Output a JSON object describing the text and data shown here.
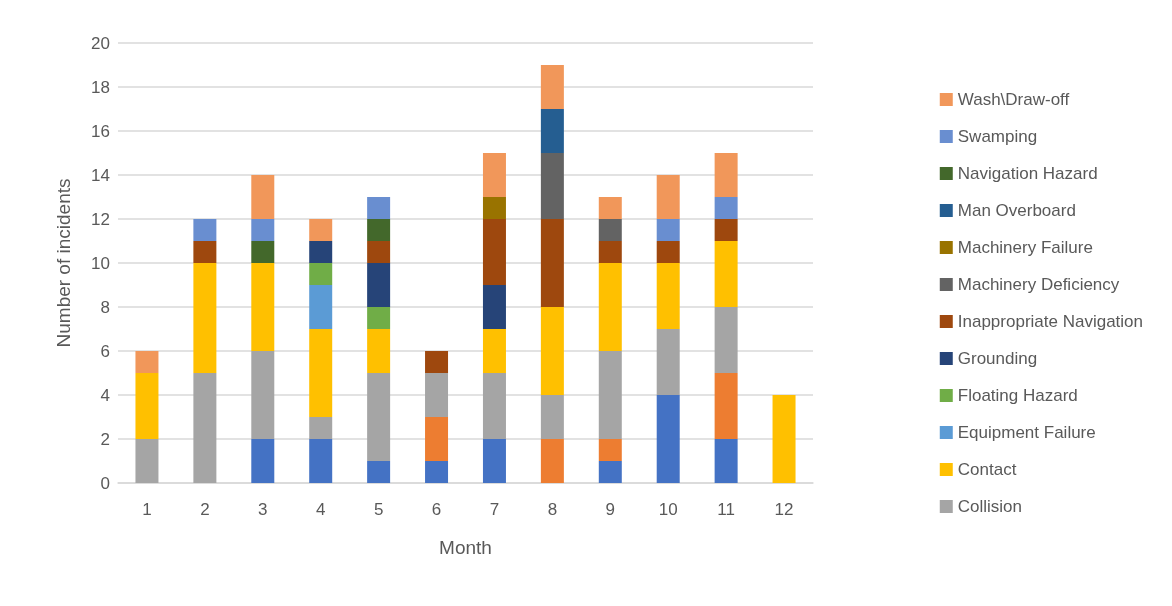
{
  "chart_data": {
    "type": "bar",
    "stacked": true,
    "xlabel": "Month",
    "ylabel": "Number of incidents",
    "categories": [
      "1",
      "2",
      "3",
      "4",
      "5",
      "6",
      "7",
      "8",
      "9",
      "10",
      "11",
      "12"
    ],
    "ylim": [
      0,
      20
    ],
    "yticks": [
      0,
      2,
      4,
      6,
      8,
      10,
      12,
      14,
      16,
      18,
      20
    ],
    "grid": "y",
    "legend": "right",
    "series": [
      {
        "color": "#4472c4",
        "values": [
          0,
          0,
          2,
          2,
          1,
          1,
          2,
          0,
          1,
          4,
          2,
          0
        ]
      },
      {
        "color": "#ed7d31",
        "values": [
          0,
          0,
          0,
          0,
          0,
          2,
          0,
          2,
          1,
          0,
          3,
          0
        ]
      },
      {
        "name": "Collision",
        "color": "#a5a5a5",
        "values": [
          2,
          5,
          4,
          1,
          4,
          2,
          3,
          2,
          4,
          3,
          3,
          0
        ]
      },
      {
        "name": "Contact",
        "color": "#ffc000",
        "values": [
          3,
          5,
          4,
          4,
          2,
          0,
          2,
          4,
          4,
          3,
          3,
          4
        ]
      },
      {
        "name": "Equipment Failure",
        "color": "#5b9bd5",
        "values": [
          0,
          0,
          0,
          2,
          0,
          0,
          0,
          0,
          0,
          0,
          0,
          0
        ]
      },
      {
        "name": "Floating Hazard",
        "color": "#70ad47",
        "values": [
          0,
          0,
          0,
          1,
          1,
          0,
          0,
          0,
          0,
          0,
          0,
          0
        ]
      },
      {
        "name": "Grounding",
        "color": "#264478",
        "values": [
          0,
          0,
          0,
          1,
          2,
          0,
          2,
          0,
          0,
          0,
          0,
          0
        ]
      },
      {
        "name": "Inappropriate Navigation",
        "color": "#9e480e",
        "values": [
          0,
          1,
          0,
          0,
          1,
          1,
          3,
          4,
          1,
          1,
          1,
          0
        ]
      },
      {
        "name": "Machinery Deficiency",
        "color": "#636363",
        "values": [
          0,
          0,
          0,
          0,
          0,
          0,
          0,
          3,
          1,
          0,
          0,
          0
        ]
      },
      {
        "name": "Machinery Failure",
        "color": "#997300",
        "values": [
          0,
          0,
          0,
          0,
          0,
          0,
          1,
          0,
          0,
          0,
          0,
          0
        ]
      },
      {
        "name": "Man Overboard",
        "color": "#255e91",
        "values": [
          0,
          0,
          0,
          0,
          0,
          0,
          0,
          2,
          0,
          0,
          0,
          0
        ]
      },
      {
        "name": "Navigation Hazard",
        "color": "#43682b",
        "values": [
          0,
          0,
          1,
          0,
          1,
          0,
          0,
          0,
          0,
          0,
          0,
          0
        ]
      },
      {
        "name": "Swamping",
        "color": "#698ed0",
        "values": [
          0,
          1,
          1,
          0,
          1,
          0,
          0,
          0,
          0,
          1,
          1,
          0
        ]
      },
      {
        "name": "Wash\\Draw-off",
        "color": "#f1975a",
        "values": [
          1,
          0,
          2,
          1,
          0,
          0,
          2,
          2,
          1,
          2,
          2,
          0
        ]
      }
    ]
  }
}
